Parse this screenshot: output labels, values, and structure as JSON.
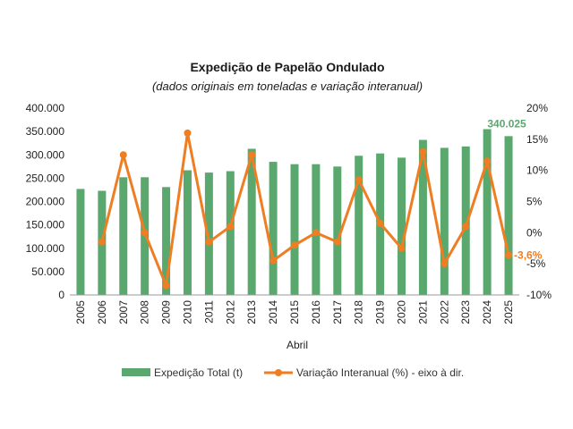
{
  "chart_data": {
    "type": "bar",
    "title": "Expedição de Papelão Ondulado",
    "subtitle": "(dados originais em toneladas e variação interanual)",
    "xlabel": "Abril",
    "categories": [
      "2005",
      "2006",
      "2007",
      "2008",
      "2009",
      "2010",
      "2011",
      "2012",
      "2013",
      "2014",
      "2015",
      "2016",
      "2017",
      "2018",
      "2019",
      "2020",
      "2021",
      "2022",
      "2023",
      "2024",
      "2025"
    ],
    "series": [
      {
        "name": "Expedição Total (t)",
        "type": "bar",
        "axis": "left",
        "color": "#5aa86e",
        "values": [
          227000,
          223000,
          252000,
          252000,
          231000,
          267000,
          262000,
          265000,
          313000,
          285000,
          280000,
          280000,
          275000,
          298000,
          303000,
          294000,
          332000,
          315000,
          318000,
          355000,
          340025
        ]
      },
      {
        "name": "Variação Interanual (%) - eixo à dir.",
        "type": "line",
        "axis": "right",
        "color": "#ef7d22",
        "values": [
          null,
          -1.5,
          12.5,
          0.0,
          -8.5,
          16.0,
          -1.5,
          1.0,
          12.5,
          -4.5,
          -2.0,
          0.0,
          -1.5,
          8.5,
          1.5,
          -2.5,
          13.0,
          -5.0,
          1.0,
          11.5,
          -3.6
        ]
      }
    ],
    "ylim": [
      0,
      400000
    ],
    "y_ticks": [
      "0",
      "50.000",
      "100.000",
      "150.000",
      "200.000",
      "250.000",
      "300.000",
      "350.000",
      "400.000"
    ],
    "y2lim": [
      -10,
      20
    ],
    "y2_ticks": [
      "-10%",
      "-5%",
      "0%",
      "5%",
      "10%",
      "15%",
      "20%"
    ],
    "data_labels": {
      "bar_last": "340.025",
      "line_last": "-3,6%"
    },
    "grid": false,
    "legend": "bottom"
  }
}
